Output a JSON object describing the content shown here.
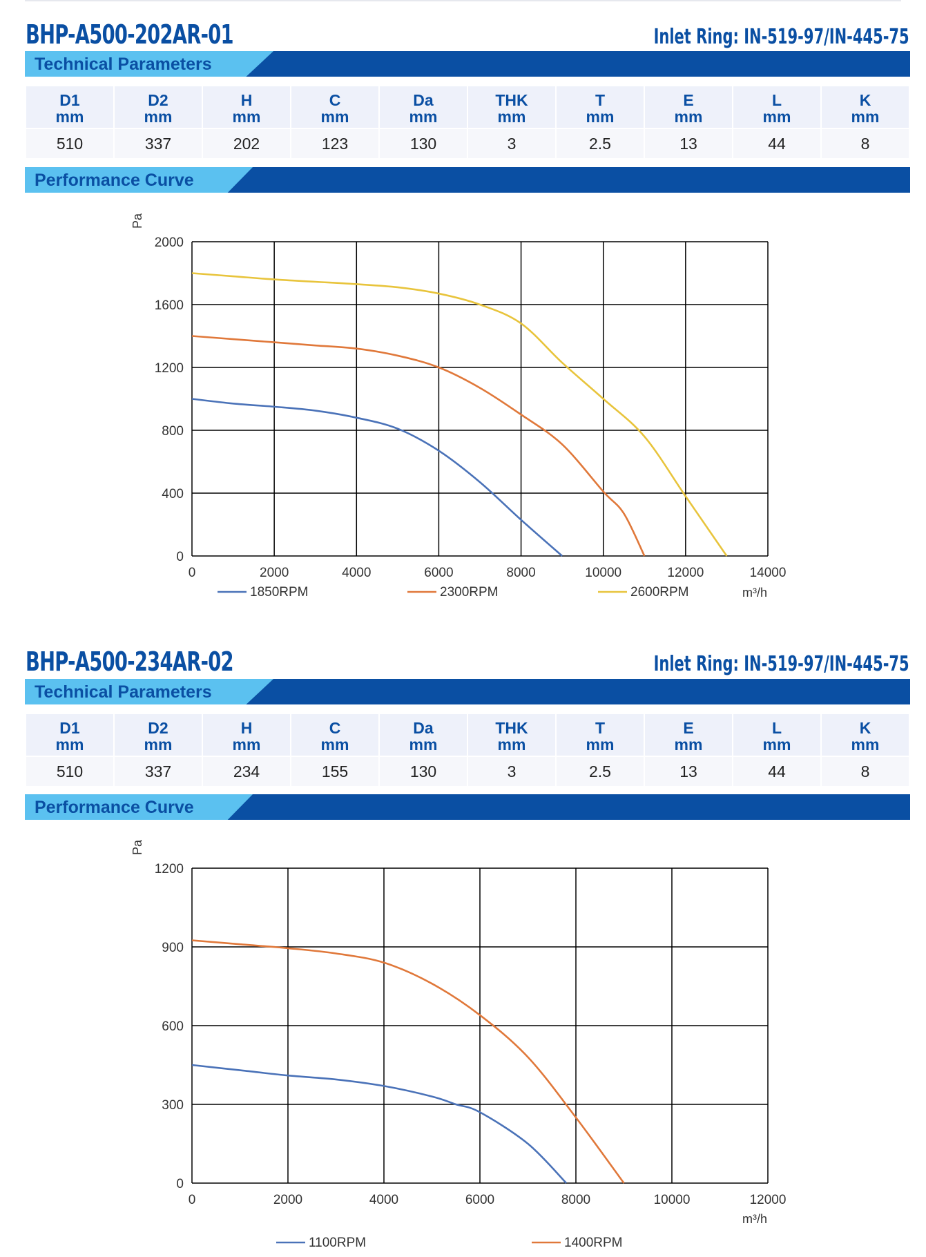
{
  "products": [
    {
      "model": "BHP-A500-202AR-01",
      "inlet_ring": "Inlet Ring: IN-519-97/IN-445-75",
      "tech_label": "Technical Parameters",
      "perf_label": "Performance Curve",
      "headers": [
        [
          "D1",
          "mm"
        ],
        [
          "D2",
          "mm"
        ],
        [
          "H",
          "mm"
        ],
        [
          "C",
          "mm"
        ],
        [
          "Da",
          "mm"
        ],
        [
          "THK",
          "mm"
        ],
        [
          "T",
          "mm"
        ],
        [
          "E",
          "mm"
        ],
        [
          "L",
          "mm"
        ],
        [
          "K",
          "mm"
        ]
      ],
      "values": [
        "510",
        "337",
        "202",
        "123",
        "130",
        "3",
        "2.5",
        "13",
        "44",
        "8"
      ]
    },
    {
      "model": "BHP-A500-234AR-02",
      "inlet_ring": "Inlet Ring: IN-519-97/IN-445-75",
      "tech_label": "Technical Parameters",
      "perf_label": "Performance Curve",
      "headers": [
        [
          "D1",
          "mm"
        ],
        [
          "D2",
          "mm"
        ],
        [
          "H",
          "mm"
        ],
        [
          "C",
          "mm"
        ],
        [
          "Da",
          "mm"
        ],
        [
          "THK",
          "mm"
        ],
        [
          "T",
          "mm"
        ],
        [
          "E",
          "mm"
        ],
        [
          "L",
          "mm"
        ],
        [
          "K",
          "mm"
        ]
      ],
      "values": [
        "510",
        "337",
        "234",
        "155",
        "130",
        "3",
        "2.5",
        "13",
        "44",
        "8"
      ]
    }
  ],
  "colors": {
    "brand_blue": "#0a4fa3",
    "light_blue": "#5bc1f0",
    "grid": "#000000"
  },
  "chart_data": [
    {
      "type": "line",
      "ylabel": "Pa",
      "xlabel": "m³/h",
      "xlim": [
        0,
        14000
      ],
      "ylim": [
        0,
        2000
      ],
      "x_ticks": [
        "0",
        "2000",
        "4000",
        "6000",
        "8000",
        "10000",
        "12000",
        "14000"
      ],
      "y_ticks": [
        "0",
        "400",
        "800",
        "1200",
        "1600",
        "2000"
      ],
      "grid": true,
      "legend_position": "bottom",
      "series": [
        {
          "name": "1850RPM",
          "color": "#4a72b8",
          "points": [
            [
              0,
              1000
            ],
            [
              1000,
              970
            ],
            [
              2000,
              950
            ],
            [
              3000,
              925
            ],
            [
              4000,
              880
            ],
            [
              5000,
              810
            ],
            [
              6000,
              670
            ],
            [
              7000,
              470
            ],
            [
              8000,
              230
            ],
            [
              9000,
              0
            ]
          ]
        },
        {
          "name": "2300RPM",
          "color": "#e0783a",
          "points": [
            [
              0,
              1400
            ],
            [
              1000,
              1380
            ],
            [
              2000,
              1360
            ],
            [
              3000,
              1340
            ],
            [
              4000,
              1320
            ],
            [
              5000,
              1275
            ],
            [
              6000,
              1200
            ],
            [
              7000,
              1070
            ],
            [
              8000,
              900
            ],
            [
              9000,
              710
            ],
            [
              10000,
              410
            ],
            [
              10500,
              270
            ],
            [
              11000,
              0
            ]
          ]
        },
        {
          "name": "2600RPM",
          "color": "#e8c43c",
          "points": [
            [
              0,
              1800
            ],
            [
              1000,
              1780
            ],
            [
              2000,
              1760
            ],
            [
              3000,
              1745
            ],
            [
              4000,
              1730
            ],
            [
              5000,
              1710
            ],
            [
              6000,
              1670
            ],
            [
              7000,
              1600
            ],
            [
              8000,
              1480
            ],
            [
              9000,
              1230
            ],
            [
              10000,
              1000
            ],
            [
              11000,
              760
            ],
            [
              12000,
              380
            ],
            [
              13000,
              0
            ]
          ]
        }
      ]
    },
    {
      "type": "line",
      "ylabel": "Pa",
      "xlabel": "m³/h",
      "xlim": [
        0,
        12000
      ],
      "ylim": [
        0,
        1200
      ],
      "x_ticks": [
        "0",
        "2000",
        "4000",
        "6000",
        "8000",
        "10000",
        "12000"
      ],
      "y_ticks": [
        "0",
        "300",
        "600",
        "900",
        "1200"
      ],
      "grid": true,
      "legend_position": "bottom",
      "series": [
        {
          "name": "1100RPM",
          "color": "#4a72b8",
          "points": [
            [
              0,
              450
            ],
            [
              1000,
              430
            ],
            [
              2000,
              410
            ],
            [
              3000,
              395
            ],
            [
              4000,
              370
            ],
            [
              5000,
              330
            ],
            [
              5500,
              300
            ],
            [
              6000,
              270
            ],
            [
              7000,
              150
            ],
            [
              7800,
              0
            ]
          ]
        },
        {
          "name": "1400RPM",
          "color": "#e0783a",
          "points": [
            [
              0,
              925
            ],
            [
              1000,
              910
            ],
            [
              2000,
              895
            ],
            [
              3000,
              875
            ],
            [
              4000,
              840
            ],
            [
              5000,
              760
            ],
            [
              6000,
              640
            ],
            [
              7000,
              480
            ],
            [
              8000,
              250
            ],
            [
              9000,
              0
            ]
          ]
        }
      ]
    }
  ]
}
